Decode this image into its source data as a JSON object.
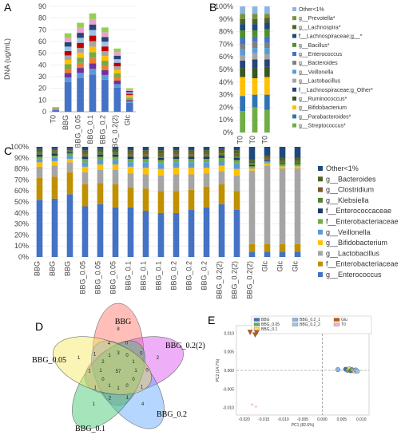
{
  "panels": {
    "a": "A",
    "b": "B",
    "c": "C",
    "d": "D",
    "e": "E"
  },
  "taxa_colors": {
    "Other<1%": "#8eb4e3",
    "g__Prevotella*": "#77933c",
    "g__Lachnospira*": "#4f6228",
    "f__Lachnospiraceae;g__*": "#1f497d",
    "g__Bacillus*": "#4e8f2a",
    "g__Enterococcus": "#4472c4",
    "g__Bacteroides": "#7f7f7f",
    "g__Veillonella": "#5b9bd5",
    "g__Lactobacillus": "#a5a5a5",
    "f__Lachnospiraceae;g_Other*": "#264478",
    "g__Ruminococcus*": "#375623",
    "g__Bifidobacterium": "#ffc000",
    "g__Parabacteroides*": "#2e75b6",
    "g__Streptococcus*": "#70ad47",
    "f__Enterobacteriaceae": "#c09000",
    "f__Enterococcaceae": "#1f3864",
    "g__Klebsiella": "#548235",
    "g__Clostridium": "#7b5a2a"
  },
  "chart_data": [
    {
      "id": "A",
      "type": "bar",
      "stacked": true,
      "categories": [
        "T0",
        "BBG",
        "BBG_0.05",
        "BBG_0.1",
        "BBG_0.2",
        "BBG_0.2(2)",
        "Glc"
      ],
      "totals": [
        4,
        67,
        76,
        84,
        72,
        54,
        20
      ],
      "ylabel": "DNA (ug/mL)",
      "ylim": [
        0,
        90
      ],
      "yticks": [
        0,
        10,
        20,
        30,
        40,
        50,
        60,
        70,
        80,
        90
      ],
      "segment_colors": [
        "#4472c4",
        "#5b9bd5",
        "#7030a0",
        "#ed7d31",
        "#70ad47",
        "#ffc000",
        "#a5a5a5",
        "#c00000",
        "#9dc3e6",
        "#264478",
        "#e7a2c9",
        "#92d050"
      ]
    },
    {
      "id": "B",
      "type": "bar",
      "stacked": true,
      "percent": true,
      "categories": [
        "T0",
        "T0",
        "T0"
      ],
      "yticks": [
        "0%",
        "10%",
        "20%",
        "30%",
        "40%",
        "50%",
        "60%",
        "70%",
        "80%",
        "90%",
        "100%"
      ],
      "legend": [
        "Other<1%",
        "g__Prevotella*",
        "g__Lachnospira*",
        "f__Lachnospiraceae;g__*",
        "g__Bacillus*",
        "g__Enterococcus",
        "g__Bacteroides",
        "g__Veillonella",
        "g__Lactobacillus",
        "f__Lachnospiraceae;g_Other*",
        "g__Ruminococcus*",
        "g__Bifidobacterium",
        "g__Parabacteroides*",
        "g__Streptococcus*"
      ],
      "stack_order": [
        "g__Streptococcus*",
        "g__Parabacteroides*",
        "g__Bifidobacterium",
        "g__Ruminococcus*",
        "f__Lachnospiraceae;g_Other*",
        "g__Lactobacillus",
        "g__Veillonella",
        "g__Bacteroides",
        "g__Enterococcus",
        "g__Bacillus*",
        "f__Lachnospiraceae;g__*",
        "g__Lachnospira*",
        "g__Prevotella*",
        "Other<1%"
      ],
      "series_values": [
        [
          17,
          20,
          18
        ],
        [
          12,
          10,
          12
        ],
        [
          15,
          13,
          14
        ],
        [
          7,
          8,
          8
        ],
        [
          6,
          7,
          6
        ],
        [
          4,
          5,
          4
        ],
        [
          5,
          4,
          5
        ],
        [
          4,
          5,
          4
        ],
        [
          5,
          4,
          5
        ],
        [
          6,
          5,
          6
        ],
        [
          5,
          5,
          5
        ],
        [
          4,
          4,
          4
        ],
        [
          4,
          4,
          3
        ],
        [
          6,
          6,
          6
        ]
      ]
    },
    {
      "id": "C",
      "type": "bar",
      "stacked": true,
      "percent": true,
      "categories": [
        "BBG",
        "BBG",
        "BBG",
        "BBG_0.05",
        "BBG_0.05",
        "BBG_0.05",
        "BBG_0.1",
        "BBG_0.1",
        "BBG_0.1",
        "BBG_0.2",
        "BBG_0.2",
        "BBG_0.2",
        "BBG_0.2(2)",
        "BBG_0.2(2)",
        "BBG_0.2(2)",
        "Glc",
        "Glc",
        "Glc"
      ],
      "yticks": [
        "0%",
        "10%",
        "20%",
        "30%",
        "40%",
        "50%",
        "60%",
        "70%",
        "80%",
        "90%",
        "100%"
      ],
      "legend": [
        "Other<1%",
        "g__Bacteroides",
        "g__Clostridium",
        "g__Klebsiella",
        "f__Enterococcaceae",
        "f__Enterobacteriaceae",
        "g__Veillonella",
        "g__Bifidobacterium",
        "g__Lactobacillus",
        "f__Enterobacteriaceae",
        "g__Enterococcus"
      ],
      "stack_order": [
        "g__Enterococcus",
        "f__Enterobacteriaceae",
        "g__Lactobacillus",
        "g__Bifidobacterium",
        "g__Veillonella",
        "f__Enterobacteriaceae",
        "f__Enterococcaceae",
        "g__Klebsiella",
        "g__Clostridium",
        "g__Bacteroides",
        "Other<1%"
      ],
      "stack_colors": [
        "#4472c4",
        "#c09000",
        "#a5a5a5",
        "#ffc000",
        "#5b9bd5",
        "#70ad47",
        "#1f3864",
        "#548235",
        "#7b5a2a",
        "#4f6228",
        "#1f497d"
      ],
      "series_values": [
        [
          52,
          53,
          57,
          46,
          48,
          45,
          45,
          42,
          40,
          40,
          43,
          45,
          48,
          43,
          5,
          5,
          5,
          5
        ],
        [
          20,
          20,
          20,
          20,
          19,
          21,
          18,
          20,
          20,
          20,
          18,
          19,
          18,
          17,
          7,
          7,
          7,
          7
        ],
        [
          10,
          10,
          9,
          11,
          12,
          13,
          13,
          13,
          14,
          15,
          14,
          12,
          12,
          14,
          68,
          72,
          70,
          70
        ],
        [
          4,
          4,
          3,
          5,
          5,
          5,
          6,
          6,
          6,
          6,
          6,
          5,
          5,
          6,
          2,
          2,
          2,
          2
        ],
        [
          3,
          3,
          3,
          4,
          4,
          4,
          4,
          5,
          5,
          5,
          5,
          5,
          4,
          5,
          1,
          1,
          1,
          1
        ],
        [
          2,
          2,
          2,
          3,
          3,
          3,
          3,
          3,
          3,
          3,
          3,
          3,
          3,
          3,
          1,
          1,
          1,
          1
        ],
        [
          2,
          2,
          1,
          2,
          2,
          2,
          2,
          2,
          2,
          2,
          2,
          2,
          2,
          2,
          1,
          1,
          1,
          1
        ],
        [
          2,
          2,
          1,
          2,
          2,
          2,
          2,
          2,
          2,
          2,
          2,
          2,
          2,
          2,
          1,
          1,
          1,
          1
        ],
        [
          1,
          1,
          1,
          2,
          1,
          1,
          2,
          2,
          2,
          2,
          2,
          2,
          2,
          2,
          1,
          1,
          1,
          1
        ],
        [
          2,
          1,
          1,
          2,
          2,
          2,
          2,
          2,
          3,
          2,
          2,
          2,
          2,
          3,
          3,
          2,
          3,
          3
        ],
        [
          2,
          2,
          2,
          3,
          2,
          2,
          3,
          3,
          3,
          3,
          3,
          3,
          2,
          3,
          12,
          8,
          10,
          10
        ]
      ]
    },
    {
      "id": "D",
      "type": "venn",
      "sets": [
        "BBG",
        "BBG_0.2(2)",
        "BBG_0.2",
        "BBG_0.1",
        "BBG_0.05"
      ],
      "colors": [
        "#ff6f61",
        "#d94cf0",
        "#5aa7ff",
        "#3ac56a",
        "#f5e65a"
      ],
      "center_value": "57",
      "region_values": [
        "8",
        "2",
        "4",
        "1",
        "1",
        "0",
        "0",
        "0",
        "1",
        "1",
        "2",
        "1",
        "1",
        "1",
        "4",
        "3",
        "0",
        "1",
        "1",
        "0",
        "0",
        "1",
        "1",
        "0",
        "1",
        "2",
        "1"
      ]
    },
    {
      "id": "E",
      "type": "scatter",
      "xlabel": "PC1 (82.6%)",
      "ylabel": "PC2 (14.7%)",
      "xlim": [
        -0.022,
        0.012
      ],
      "ylim": [
        -0.012,
        0.012
      ],
      "xticks": [
        "-0.020",
        "-0.015",
        "-0.010",
        "-0.005",
        "0.000",
        "0.005",
        "0.010"
      ],
      "yticks": [
        "-0.010",
        "-0.005",
        "0.000",
        "0.005",
        "0.010"
      ],
      "legend": [
        {
          "name": "BBG",
          "color": "#4472c4",
          "shape": "square"
        },
        {
          "name": "BBG_0.05",
          "color": "#70ad47",
          "shape": "square"
        },
        {
          "name": "BBG_0.1",
          "color": "#ffd966",
          "shape": "square"
        },
        {
          "name": "BBG_0.2_1",
          "color": "#8eb4e3",
          "shape": "square"
        },
        {
          "name": "BBG_0.2_2",
          "color": "#9dc3e6",
          "shape": "square"
        },
        {
          "name": "Glu",
          "color": "#c55a11",
          "shape": "square"
        },
        {
          "name": "T0",
          "color": "#f4b6c2",
          "shape": "square"
        }
      ],
      "points": [
        {
          "x": -0.0185,
          "y": 0.0102,
          "group": "Glu",
          "marker": "triangle-down"
        },
        {
          "x": -0.0168,
          "y": 0.0101,
          "group": "Glu",
          "marker": "triangle-down"
        },
        {
          "x": -0.0172,
          "y": 0.0095,
          "group": "Glu",
          "marker": "triangle-down"
        },
        {
          "x": -0.018,
          "y": -0.0092,
          "group": "T0",
          "marker": "plus"
        },
        {
          "x": -0.017,
          "y": -0.0098,
          "group": "T0",
          "marker": "plus"
        },
        {
          "x": 0.004,
          "y": 0.0002,
          "group": "BBG_0.2_1",
          "marker": "circle"
        },
        {
          "x": 0.006,
          "y": 0.0003,
          "group": "BBG",
          "marker": "circle"
        },
        {
          "x": 0.0065,
          "y": 0.0,
          "group": "BBG_0.05",
          "marker": "circle"
        },
        {
          "x": 0.007,
          "y": 0.0004,
          "group": "BBG_0.1",
          "marker": "circle"
        },
        {
          "x": 0.0073,
          "y": -0.0001,
          "group": "BBG",
          "marker": "circle"
        },
        {
          "x": 0.0076,
          "y": 0.0002,
          "group": "BBG_0.05",
          "marker": "circle"
        },
        {
          "x": 0.008,
          "y": 0.0,
          "group": "BBG_0.2_2",
          "marker": "circle"
        },
        {
          "x": 0.0083,
          "y": -0.0002,
          "group": "BBG_0.1",
          "marker": "circle"
        },
        {
          "x": 0.0086,
          "y": 0.0001,
          "group": "BBG_0.2_1",
          "marker": "circle"
        },
        {
          "x": 0.009,
          "y": -0.0002,
          "group": "BBG_0.2_2",
          "marker": "circle"
        }
      ]
    }
  ]
}
